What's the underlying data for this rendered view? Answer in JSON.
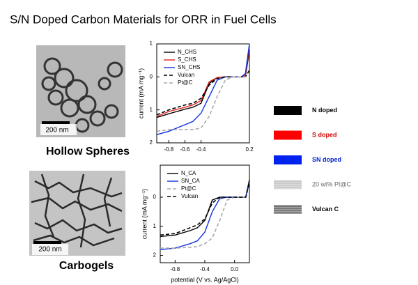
{
  "slide_title": "S/N Doped Carbon Materials for ORR in Fuel Cells",
  "images": [
    {
      "label": "Hollow Spheres",
      "scale": "200 nm"
    },
    {
      "label": "Carbogels",
      "scale": "200 nm"
    }
  ],
  "legend": {
    "items": [
      {
        "name": "N doped",
        "color": "#000000",
        "text_color": "#000000"
      },
      {
        "name": "S doped",
        "color": "#ff0000",
        "text_color": "#cc0000"
      },
      {
        "name": "SN doped",
        "color": "#0022ee",
        "text_color": "#0022cc"
      },
      {
        "name": "20 wt% Pt@C",
        "color": "#c8c8c8",
        "text_color": "#666666"
      },
      {
        "name": "Vulcan C",
        "color": "#707070",
        "text_color": "#000000"
      }
    ]
  },
  "chart_data": [
    {
      "type": "line",
      "ylabel": "current (mA mg⁻¹)",
      "x": [
        -0.95,
        -0.8,
        -0.6,
        -0.5,
        -0.4,
        -0.3,
        -0.2,
        -0.1,
        0,
        0.1,
        0.15,
        0.2
      ],
      "xlim": [
        -0.95,
        0.2
      ],
      "xticks": [
        -0.8,
        -0.6,
        -0.4,
        0.2
      ],
      "ylim": [
        -2,
        1
      ],
      "yticks": [
        1,
        0,
        {
          "value": -1,
          "label": "1"
        },
        {
          "value": -2,
          "label": "2"
        }
      ],
      "series": [
        {
          "name": "N_CHS",
          "color": "#000000",
          "dash": false,
          "values": [
            -1.23,
            -1.12,
            -0.98,
            -0.92,
            -0.8,
            -0.2,
            -0.02,
            0,
            0,
            0,
            0,
            0.8
          ]
        },
        {
          "name": "S_CHS",
          "color": "#e02020",
          "dash": false,
          "values": [
            -1.2,
            -1.05,
            -0.92,
            -0.85,
            -0.72,
            -0.15,
            -0.02,
            0,
            0,
            0,
            0.05,
            0.9
          ]
        },
        {
          "name": "SN_CHS",
          "color": "#1030e0",
          "dash": false,
          "values": [
            -1.75,
            -1.65,
            -1.45,
            -1.35,
            -1.1,
            -0.6,
            -0.1,
            0,
            0,
            0,
            0.1,
            1.0
          ]
        },
        {
          "name": "Vulcan",
          "color": "#000000",
          "dash": true,
          "values": [
            -1.15,
            -1.0,
            -0.85,
            -0.8,
            -0.65,
            -0.25,
            -0.05,
            0,
            0,
            0,
            0,
            0.2
          ]
        },
        {
          "name": "Pt@C",
          "color": "#aaaaaa",
          "dash": true,
          "values": [
            -1.65,
            -1.6,
            -1.6,
            -1.6,
            -1.55,
            -1.2,
            -0.6,
            -0.1,
            0,
            0,
            0,
            0
          ]
        }
      ]
    },
    {
      "type": "line",
      "ylabel": "current (mA mg⁻¹)",
      "xlabel": "potential (V vs. Ag/AgCl)",
      "x": [
        -1.0,
        -0.8,
        -0.6,
        -0.5,
        -0.4,
        -0.3,
        -0.2,
        -0.1,
        0,
        0.1,
        0.15,
        0.2
      ],
      "xlim": [
        -1.0,
        0.2
      ],
      "xticks": [
        -0.8,
        -0.4,
        {
          "value": 0,
          "label": "0.0"
        }
      ],
      "ylim": [
        -2.25,
        1.1
      ],
      "yticks": [
        0,
        {
          "value": -1,
          "label": "1"
        },
        {
          "value": -2,
          "label": "2"
        }
      ],
      "series": [
        {
          "name": "N_CA",
          "color": "#000000",
          "dash": false,
          "values": [
            -1.35,
            -1.3,
            -1.15,
            -1.05,
            -0.8,
            -0.1,
            0,
            0,
            0,
            0,
            0,
            0.6
          ]
        },
        {
          "name": "SN_CA",
          "color": "#1030e0",
          "dash": false,
          "values": [
            -1.8,
            -1.75,
            -1.6,
            -1.5,
            -1.2,
            -0.5,
            -0.05,
            0,
            0,
            0,
            0,
            0.5
          ]
        },
        {
          "name": "Pt@C",
          "color": "#aaaaaa",
          "dash": true,
          "values": [
            -1.75,
            -1.75,
            -1.72,
            -1.7,
            -1.6,
            -1.4,
            -0.8,
            -0.1,
            0,
            0,
            0,
            0
          ]
        },
        {
          "name": "Vulcan",
          "color": "#000000",
          "dash": true,
          "values": [
            -1.3,
            -1.25,
            -1.05,
            -0.95,
            -0.75,
            -0.2,
            0,
            0,
            0,
            0,
            0,
            0.5
          ]
        }
      ]
    }
  ]
}
